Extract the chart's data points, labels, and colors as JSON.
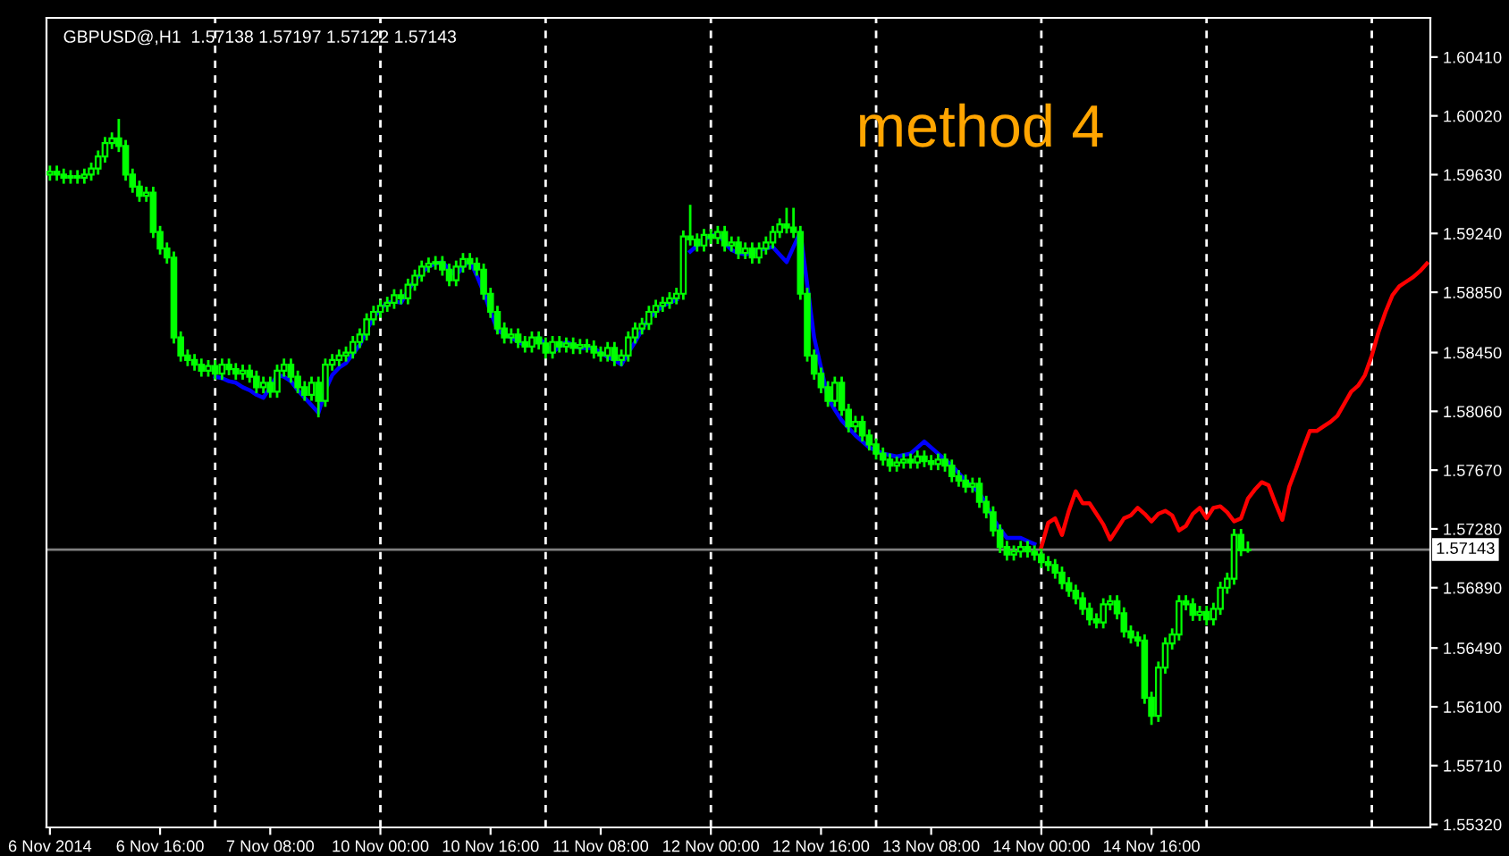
{
  "chart_data": {
    "type": "candlestick",
    "title": "GBPUSD@,H1  1.57138 1.57197 1.57122 1.57143",
    "annotations": [
      "method 4"
    ],
    "categories": [
      "6 Nov 2014",
      null,
      null,
      null,
      null,
      null,
      null,
      null,
      null,
      null,
      null,
      null,
      null,
      null,
      null,
      null,
      "6 Nov 16:00",
      null,
      null,
      null,
      null,
      null,
      null,
      null,
      null,
      null,
      null,
      null,
      null,
      null,
      null,
      null,
      "7 Nov 08:00",
      null,
      null,
      null,
      null,
      null,
      null,
      null,
      null,
      null,
      null,
      null,
      null,
      null,
      null,
      null,
      "10 Nov 00:00",
      null,
      null,
      null,
      null,
      null,
      null,
      null,
      null,
      null,
      null,
      null,
      null,
      null,
      null,
      null,
      "10 Nov 16:00",
      null,
      null,
      null,
      null,
      null,
      null,
      null,
      null,
      null,
      null,
      null,
      null,
      null,
      null,
      null,
      "11 Nov 08:00",
      null,
      null,
      null,
      null,
      null,
      null,
      null,
      null,
      null,
      null,
      null,
      null,
      null,
      null,
      null,
      "12 Nov 00:00",
      null,
      null,
      null,
      null,
      null,
      null,
      null,
      null,
      null,
      null,
      null,
      null,
      null,
      null,
      null,
      "12 Nov 16:00",
      null,
      null,
      null,
      null,
      null,
      null,
      null,
      null,
      null,
      null,
      null,
      null,
      null,
      null,
      null,
      "13 Nov 08:00",
      null,
      null,
      null,
      null,
      null,
      null,
      null,
      null,
      null,
      null,
      null,
      null,
      null,
      null,
      null,
      "14 Nov 00:00",
      null,
      null,
      null,
      null,
      null,
      null,
      null,
      null,
      null,
      null,
      null,
      null,
      null,
      null,
      null,
      "14 Nov 16:00",
      null,
      null,
      null,
      null,
      null,
      null,
      null,
      null,
      null,
      null,
      null,
      null,
      null,
      null,
      null,
      null,
      null,
      null,
      null,
      null,
      null,
      null,
      null,
      null,
      null,
      null,
      null,
      null,
      null,
      null,
      null,
      null,
      null,
      null,
      null,
      null,
      null,
      null,
      null,
      null
    ],
    "ylim": [
      1.553,
      1.6067
    ],
    "yticks": [
      {
        "value": 1.5532,
        "label": "1.55320"
      },
      {
        "value": 1.5571,
        "label": "1.55710"
      },
      {
        "value": 1.561,
        "label": "1.56100"
      },
      {
        "value": 1.5649,
        "label": "1.56490"
      },
      {
        "value": 1.5689,
        "label": "1.56890"
      },
      {
        "value": 1.5728,
        "label": "1.57280"
      },
      {
        "value": 1.5767,
        "label": "1.57670"
      },
      {
        "value": 1.5806,
        "label": "1.58060"
      },
      {
        "value": 1.5845,
        "label": "1.58450"
      },
      {
        "value": 1.5885,
        "label": "1.58850"
      },
      {
        "value": 1.5924,
        "label": "1.59240"
      },
      {
        "value": 1.5963,
        "label": "1.59630"
      },
      {
        "value": 1.6002,
        "label": "1.60020"
      },
      {
        "value": 1.6041,
        "label": "1.60410"
      }
    ],
    "grid": false,
    "legend": false,
    "ref_lines": [
      {
        "axis": "y",
        "value": 1.57143,
        "label": "1.57143",
        "color": "#808080",
        "line_style": "solid"
      }
    ],
    "series": [
      {
        "color": "#00ff00",
        "ohlc": [
          [
            1.5963,
            1.5969,
            1.5959,
            1.5965
          ],
          [
            1.5965,
            1.5969,
            1.5959,
            1.5963
          ],
          [
            1.5963,
            1.5967,
            1.5957,
            1.5961
          ],
          [
            1.5961,
            1.5966,
            1.5957,
            1.5962
          ],
          [
            1.5962,
            1.5966,
            1.5957,
            1.5961
          ],
          [
            1.5961,
            1.5967,
            1.5957,
            1.5963
          ],
          [
            1.5963,
            1.5971,
            1.5959,
            1.5967
          ],
          [
            1.5967,
            1.5979,
            1.5963,
            1.5975
          ],
          [
            1.5975,
            1.5988,
            1.5971,
            1.5984
          ],
          [
            1.5984,
            1.5991,
            1.598,
            1.5987
          ],
          [
            1.5987,
            1.6,
            1.5978,
            1.5982
          ],
          [
            1.5982,
            1.5986,
            1.5959,
            1.5963
          ],
          [
            1.5963,
            1.5967,
            1.5951,
            1.5955
          ],
          [
            1.5955,
            1.5959,
            1.5945,
            1.5949
          ],
          [
            1.5949,
            1.5955,
            1.5945,
            1.5951
          ],
          [
            1.5951,
            1.5955,
            1.5921,
            1.5925
          ],
          [
            1.5925,
            1.5929,
            1.591,
            1.5914
          ],
          [
            1.5914,
            1.5918,
            1.5904,
            1.5908
          ],
          [
            1.5908,
            1.5912,
            1.5851,
            1.5855
          ],
          [
            1.5855,
            1.5859,
            1.5839,
            1.5843
          ],
          [
            1.5843,
            1.5847,
            1.5836,
            1.584
          ],
          [
            1.584,
            1.5844,
            1.5833,
            1.5837
          ],
          [
            1.5837,
            1.5841,
            1.5829,
            1.5833
          ],
          [
            1.5833,
            1.584,
            1.5829,
            1.5836
          ],
          [
            1.5836,
            1.584,
            1.5827,
            1.5831
          ],
          [
            1.5831,
            1.5841,
            1.5827,
            1.5837
          ],
          [
            1.5837,
            1.5841,
            1.583,
            1.5834
          ],
          [
            1.5834,
            1.5838,
            1.5827,
            1.5831
          ],
          [
            1.5831,
            1.5837,
            1.5827,
            1.5833
          ],
          [
            1.5833,
            1.5837,
            1.5825,
            1.5829
          ],
          [
            1.5829,
            1.5833,
            1.5818,
            1.5822
          ],
          [
            1.5822,
            1.5829,
            1.5818,
            1.5825
          ],
          [
            1.5825,
            1.5829,
            1.5815,
            1.5819
          ],
          [
            1.5819,
            1.5837,
            1.5815,
            1.5833
          ],
          [
            1.5833,
            1.5841,
            1.5829,
            1.5837
          ],
          [
            1.5837,
            1.5841,
            1.5825,
            1.5829
          ],
          [
            1.5829,
            1.5833,
            1.5818,
            1.5822
          ],
          [
            1.5822,
            1.5826,
            1.5813,
            1.5817
          ],
          [
            1.5817,
            1.5829,
            1.5813,
            1.5825
          ],
          [
            1.5825,
            1.5829,
            1.5802,
            1.5813
          ],
          [
            1.5813,
            1.5841,
            1.5809,
            1.5837
          ],
          [
            1.5837,
            1.5844,
            1.5833,
            1.584
          ],
          [
            1.584,
            1.5847,
            1.5836,
            1.5843
          ],
          [
            1.5843,
            1.5849,
            1.5839,
            1.5845
          ],
          [
            1.5845,
            1.5856,
            1.5841,
            1.5852
          ],
          [
            1.5852,
            1.5861,
            1.5848,
            1.5857
          ],
          [
            1.5857,
            1.5871,
            1.5853,
            1.5867
          ],
          [
            1.5867,
            1.5876,
            1.5863,
            1.5872
          ],
          [
            1.5872,
            1.588,
            1.5868,
            1.5876
          ],
          [
            1.5876,
            1.5882,
            1.5872,
            1.5878
          ],
          [
            1.5878,
            1.5887,
            1.5874,
            1.5883
          ],
          [
            1.5883,
            1.5887,
            1.5877,
            1.5881
          ],
          [
            1.5881,
            1.5894,
            1.5877,
            1.589
          ],
          [
            1.589,
            1.59,
            1.5886,
            1.5896
          ],
          [
            1.5896,
            1.5906,
            1.5892,
            1.5902
          ],
          [
            1.5902,
            1.5908,
            1.5898,
            1.5904
          ],
          [
            1.5904,
            1.5909,
            1.59,
            1.5905
          ],
          [
            1.5905,
            1.5909,
            1.5896,
            1.59
          ],
          [
            1.59,
            1.5904,
            1.5889,
            1.5893
          ],
          [
            1.5893,
            1.5906,
            1.5889,
            1.5902
          ],
          [
            1.5902,
            1.5911,
            1.5898,
            1.5907
          ],
          [
            1.5907,
            1.5911,
            1.59,
            1.5904
          ],
          [
            1.5904,
            1.5908,
            1.5896,
            1.59
          ],
          [
            1.59,
            1.5904,
            1.588,
            1.5884
          ],
          [
            1.5884,
            1.5888,
            1.5868,
            1.5872
          ],
          [
            1.5872,
            1.5876,
            1.5857,
            1.5861
          ],
          [
            1.5861,
            1.5865,
            1.5851,
            1.5855
          ],
          [
            1.5855,
            1.5861,
            1.5851,
            1.5857
          ],
          [
            1.5857,
            1.5861,
            1.5848,
            1.5852
          ],
          [
            1.5852,
            1.5856,
            1.5845,
            1.5849
          ],
          [
            1.5849,
            1.5859,
            1.5845,
            1.5855
          ],
          [
            1.5855,
            1.5859,
            1.5847,
            1.5851
          ],
          [
            1.5851,
            1.5855,
            1.5841,
            1.5845
          ],
          [
            1.5845,
            1.5856,
            1.5841,
            1.5852
          ],
          [
            1.5852,
            1.5856,
            1.5845,
            1.5849
          ],
          [
            1.5849,
            1.5855,
            1.5845,
            1.5851
          ],
          [
            1.5851,
            1.5855,
            1.5844,
            1.5848
          ],
          [
            1.5848,
            1.5854,
            1.5844,
            1.585
          ],
          [
            1.585,
            1.5854,
            1.5845,
            1.5849
          ],
          [
            1.5849,
            1.5853,
            1.5841,
            1.5845
          ],
          [
            1.5845,
            1.5849,
            1.5839,
            1.5843
          ],
          [
            1.5843,
            1.5852,
            1.5839,
            1.5848
          ],
          [
            1.5848,
            1.5852,
            1.5836,
            1.584
          ],
          [
            1.584,
            1.5847,
            1.5836,
            1.5843
          ],
          [
            1.5843,
            1.5859,
            1.5839,
            1.5855
          ],
          [
            1.5855,
            1.5865,
            1.5851,
            1.5861
          ],
          [
            1.5861,
            1.5868,
            1.5857,
            1.5864
          ],
          [
            1.5864,
            1.5876,
            1.586,
            1.5872
          ],
          [
            1.5872,
            1.588,
            1.5868,
            1.5876
          ],
          [
            1.5876,
            1.5882,
            1.5872,
            1.5878
          ],
          [
            1.5878,
            1.5885,
            1.5874,
            1.5881
          ],
          [
            1.5881,
            1.5888,
            1.5877,
            1.5884
          ],
          [
            1.5884,
            1.5926,
            1.588,
            1.5922
          ],
          [
            1.5922,
            1.5943,
            1.5916,
            1.592
          ],
          [
            1.592,
            1.5924,
            1.5912,
            1.5916
          ],
          [
            1.5916,
            1.5927,
            1.5912,
            1.5923
          ],
          [
            1.5923,
            1.5927,
            1.5917,
            1.5921
          ],
          [
            1.5921,
            1.5929,
            1.5917,
            1.5925
          ],
          [
            1.5925,
            1.5929,
            1.5912,
            1.5916
          ],
          [
            1.5916,
            1.5922,
            1.5912,
            1.5918
          ],
          [
            1.5918,
            1.5922,
            1.5907,
            1.5911
          ],
          [
            1.5911,
            1.5918,
            1.5907,
            1.5914
          ],
          [
            1.5914,
            1.5918,
            1.5904,
            1.5908
          ],
          [
            1.5908,
            1.5918,
            1.5904,
            1.5914
          ],
          [
            1.5914,
            1.5922,
            1.591,
            1.5918
          ],
          [
            1.5918,
            1.5929,
            1.5914,
            1.5925
          ],
          [
            1.5925,
            1.5934,
            1.5921,
            1.593
          ],
          [
            1.593,
            1.5941,
            1.5924,
            1.5928
          ],
          [
            1.5928,
            1.5941,
            1.5921,
            1.5925
          ],
          [
            1.5925,
            1.5929,
            1.588,
            1.5884
          ],
          [
            1.5884,
            1.5888,
            1.5839,
            1.5843
          ],
          [
            1.5843,
            1.5847,
            1.5827,
            1.5831
          ],
          [
            1.5831,
            1.5835,
            1.5818,
            1.5822
          ],
          [
            1.5822,
            1.5826,
            1.5809,
            1.5813
          ],
          [
            1.5813,
            1.5829,
            1.5809,
            1.5825
          ],
          [
            1.5825,
            1.5829,
            1.5803,
            1.5807
          ],
          [
            1.5807,
            1.5811,
            1.5792,
            1.5796
          ],
          [
            1.5796,
            1.5803,
            1.5792,
            1.5799
          ],
          [
            1.5799,
            1.5803,
            1.5786,
            1.579
          ],
          [
            1.579,
            1.5794,
            1.578,
            1.5784
          ],
          [
            1.5784,
            1.5788,
            1.5774,
            1.5778
          ],
          [
            1.5778,
            1.5782,
            1.577,
            1.5774
          ],
          [
            1.5774,
            1.5778,
            1.5766,
            1.577
          ],
          [
            1.577,
            1.5776,
            1.5766,
            1.5772
          ],
          [
            1.5772,
            1.5778,
            1.5768,
            1.5774
          ],
          [
            1.5774,
            1.5778,
            1.5768,
            1.5772
          ],
          [
            1.5772,
            1.578,
            1.5768,
            1.5776
          ],
          [
            1.5776,
            1.578,
            1.5769,
            1.5773
          ],
          [
            1.5773,
            1.5777,
            1.5767,
            1.5771
          ],
          [
            1.5771,
            1.5778,
            1.5767,
            1.5774
          ],
          [
            1.5774,
            1.5778,
            1.5766,
            1.577
          ],
          [
            1.577,
            1.5774,
            1.5759,
            1.5763
          ],
          [
            1.5763,
            1.5767,
            1.5756,
            1.576
          ],
          [
            1.576,
            1.5764,
            1.5752,
            1.5756
          ],
          [
            1.5756,
            1.5762,
            1.5752,
            1.5758
          ],
          [
            1.5758,
            1.5762,
            1.5742,
            1.5746
          ],
          [
            1.5746,
            1.575,
            1.5735,
            1.5739
          ],
          [
            1.5739,
            1.5743,
            1.5723,
            1.5727
          ],
          [
            1.5727,
            1.5731,
            1.5712,
            1.5716
          ],
          [
            1.5716,
            1.572,
            1.5707,
            1.5711
          ],
          [
            1.5711,
            1.5717,
            1.5707,
            1.5713
          ],
          [
            1.5713,
            1.572,
            1.5709,
            1.5716
          ],
          [
            1.5716,
            1.572,
            1.5709,
            1.5713
          ],
          [
            1.5713,
            1.5717,
            1.5707,
            1.5711
          ],
          [
            1.5711,
            1.5715,
            1.5702,
            1.5706
          ],
          [
            1.5706,
            1.571,
            1.57,
            1.5704
          ],
          [
            1.5704,
            1.5708,
            1.5695,
            1.5699
          ],
          [
            1.5699,
            1.5703,
            1.5688,
            1.5692
          ],
          [
            1.5692,
            1.5696,
            1.5683,
            1.5687
          ],
          [
            1.5687,
            1.5691,
            1.5678,
            1.5682
          ],
          [
            1.5682,
            1.5686,
            1.5671,
            1.5675
          ],
          [
            1.5675,
            1.5679,
            1.5664,
            1.5668
          ],
          [
            1.5668,
            1.5672,
            1.5662,
            1.5666
          ],
          [
            1.5666,
            1.5682,
            1.5662,
            1.5678
          ],
          [
            1.5678,
            1.5684,
            1.5674,
            1.568
          ],
          [
            1.568,
            1.5684,
            1.5668,
            1.5672
          ],
          [
            1.5672,
            1.5676,
            1.5656,
            1.566
          ],
          [
            1.566,
            1.5664,
            1.5652,
            1.5656
          ],
          [
            1.5656,
            1.566,
            1.565,
            1.5654
          ],
          [
            1.5654,
            1.5658,
            1.5612,
            1.5616
          ],
          [
            1.5616,
            1.562,
            1.5598,
            1.5604
          ],
          [
            1.5604,
            1.564,
            1.56,
            1.5636
          ],
          [
            1.5636,
            1.5656,
            1.5632,
            1.5652
          ],
          [
            1.5652,
            1.5662,
            1.5648,
            1.5658
          ],
          [
            1.5658,
            1.5684,
            1.5654,
            1.568
          ],
          [
            1.568,
            1.5684,
            1.5674,
            1.5678
          ],
          [
            1.5678,
            1.5682,
            1.5667,
            1.5671
          ],
          [
            1.5671,
            1.5677,
            1.5667,
            1.5673
          ],
          [
            1.5673,
            1.5677,
            1.5664,
            1.5668
          ],
          [
            1.5668,
            1.5679,
            1.5664,
            1.5675
          ],
          [
            1.5675,
            1.5693,
            1.5671,
            1.5689
          ],
          [
            1.5689,
            1.5699,
            1.5685,
            1.5695
          ],
          [
            1.5695,
            1.5728,
            1.5691,
            1.5724
          ],
          [
            1.5724,
            1.5728,
            1.571,
            1.57138
          ],
          [
            1.57138,
            1.57197,
            1.57122,
            1.57143
          ],
          null,
          null,
          null,
          null,
          null,
          null,
          null,
          null,
          null,
          null,
          null,
          null,
          null,
          null,
          null,
          null,
          null,
          null,
          null,
          null,
          null,
          null,
          null,
          null,
          null,
          null
        ]
      },
      {
        "type": "line",
        "color": "#0000ff",
        "values": [
          null,
          null,
          null,
          null,
          null,
          null,
          null,
          null,
          null,
          null,
          null,
          null,
          null,
          null,
          null,
          null,
          null,
          null,
          null,
          null,
          null,
          null,
          null,
          null,
          1.5829,
          1.5828,
          1.5826,
          1.5825,
          1.5822,
          1.582,
          1.5817,
          1.5815,
          1.5822,
          1.583,
          1.5829,
          1.5826,
          1.582,
          1.5815,
          1.581,
          1.5805,
          1.582,
          1.583,
          1.5835,
          1.5838,
          1.5844,
          1.585,
          1.586,
          1.5868,
          1.5874,
          1.5878,
          1.5879,
          1.5878,
          1.5886,
          1.5893,
          1.5898,
          1.5902,
          1.5904,
          1.5905,
          1.59,
          1.5896,
          1.5902,
          1.5906,
          1.5896,
          1.5885,
          1.5872,
          1.586,
          1.5857,
          1.5855,
          1.5852,
          1.585,
          null,
          1.5855,
          1.585,
          1.5845,
          1.5849,
          1.5852,
          1.585,
          1.5848,
          1.5848,
          1.5848,
          1.5845,
          1.5842,
          1.584,
          1.5837,
          1.5845,
          1.5852,
          1.586,
          1.5868,
          1.5872,
          1.5876,
          1.5878,
          1.588,
          null,
          1.5912,
          1.5916,
          1.592,
          1.5922,
          1.5924,
          1.5918,
          1.5913,
          1.5911,
          1.591,
          1.5911,
          1.5913,
          1.5914,
          1.5915,
          1.591,
          1.5905,
          1.5915,
          1.5925,
          1.589,
          1.5855,
          1.5835,
          1.5815,
          1.5807,
          1.58,
          1.5795,
          1.579,
          1.5786,
          1.5782,
          1.578,
          1.5778,
          1.5777,
          1.5776,
          1.5777,
          1.5778,
          1.5782,
          1.5786,
          1.5782,
          1.5778,
          1.5774,
          1.577,
          1.5765,
          1.576,
          1.5756,
          1.5752,
          1.5744,
          1.5735,
          1.5728,
          1.5722,
          1.5722,
          1.5722,
          1.572,
          1.5718,
          null,
          null,
          null,
          null,
          null,
          null,
          null,
          null,
          null,
          null,
          null,
          null,
          null,
          null,
          null,
          null,
          null,
          null,
          null,
          null,
          null,
          null,
          null,
          null,
          null,
          null,
          null,
          null,
          null,
          null,
          null,
          null,
          null,
          null,
          null,
          null,
          null,
          null,
          null,
          null,
          null,
          null,
          null,
          null,
          null,
          null,
          null,
          null,
          null,
          null,
          null,
          null,
          null,
          null,
          null,
          null,
          null
        ]
      },
      {
        "type": "line",
        "color": "#ff0000",
        "values": [
          null,
          null,
          null,
          null,
          null,
          null,
          null,
          null,
          null,
          null,
          null,
          null,
          null,
          null,
          null,
          null,
          null,
          null,
          null,
          null,
          null,
          null,
          null,
          null,
          null,
          null,
          null,
          null,
          null,
          null,
          null,
          null,
          null,
          null,
          null,
          null,
          null,
          null,
          null,
          null,
          null,
          null,
          null,
          null,
          null,
          null,
          null,
          null,
          null,
          null,
          null,
          null,
          null,
          null,
          null,
          null,
          null,
          null,
          null,
          null,
          null,
          null,
          null,
          null,
          null,
          null,
          null,
          null,
          null,
          null,
          null,
          null,
          null,
          null,
          null,
          null,
          null,
          null,
          null,
          null,
          null,
          null,
          null,
          null,
          null,
          null,
          null,
          null,
          null,
          null,
          null,
          null,
          null,
          null,
          null,
          null,
          null,
          null,
          null,
          null,
          null,
          null,
          null,
          null,
          null,
          null,
          null,
          null,
          null,
          null,
          null,
          null,
          null,
          null,
          null,
          null,
          null,
          null,
          null,
          null,
          null,
          null,
          null,
          null,
          null,
          null,
          null,
          null,
          null,
          null,
          null,
          null,
          null,
          null,
          null,
          null,
          null,
          null,
          null,
          null,
          null,
          null,
          null,
          null,
          1.5716,
          1.5732,
          1.5735,
          1.5724,
          1.574,
          1.5753,
          1.5745,
          1.5745,
          1.5738,
          1.5731,
          1.5721,
          1.5728,
          1.5735,
          1.5737,
          1.5742,
          1.5738,
          1.5733,
          1.5738,
          1.574,
          1.5737,
          1.5727,
          1.573,
          1.5738,
          1.5742,
          1.5735,
          1.5742,
          1.5743,
          1.5739,
          1.5733,
          1.5735,
          1.5748,
          1.5754,
          1.5759,
          1.5757,
          1.5745,
          1.5734,
          1.5756,
          1.5768,
          1.5781,
          1.5793,
          1.5793,
          1.5796,
          1.5799,
          1.5803,
          1.5811,
          1.5819,
          1.5823,
          1.583,
          1.5843,
          1.5859,
          1.5872,
          1.5883,
          1.5889,
          1.5892,
          1.5895,
          1.5899,
          1.5904
        ]
      }
    ]
  }
}
